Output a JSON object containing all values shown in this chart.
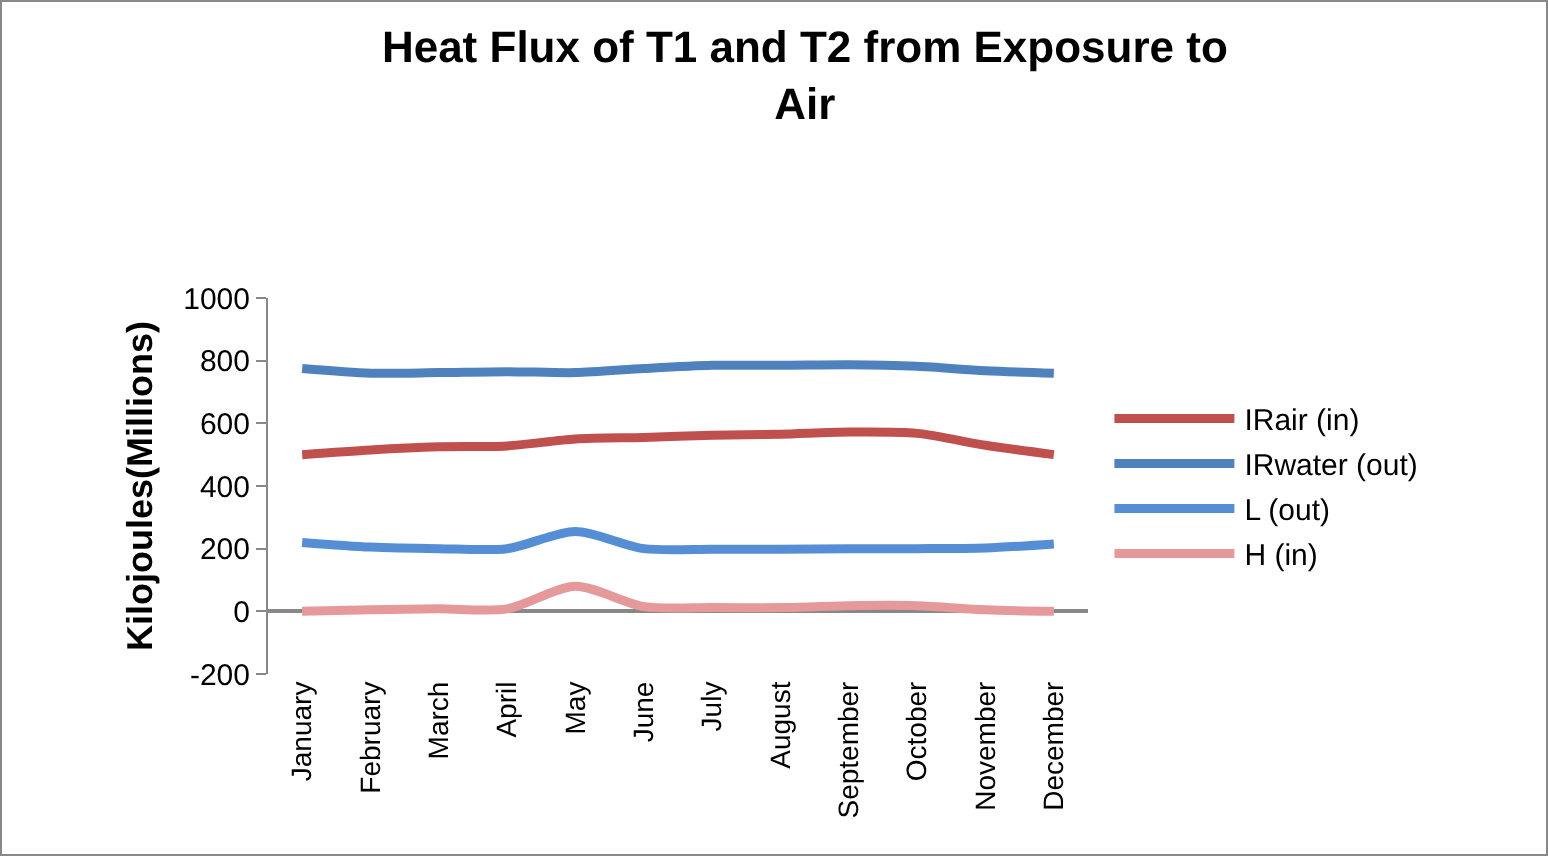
{
  "chart_data": {
    "type": "line",
    "title": "Heat Flux of T1 and T2 from Exposure to Air",
    "ylabel": "Kilojoules(Millions)",
    "categories": [
      "January",
      "February",
      "March",
      "April",
      "May",
      "June",
      "July",
      "August",
      "September",
      "October",
      "November",
      "December"
    ],
    "series": [
      {
        "name": "IRair (in)",
        "color": "#c0504d",
        "values": [
          500,
          515,
          525,
          528,
          550,
          555,
          562,
          565,
          572,
          568,
          530,
          500
        ]
      },
      {
        "name": "IRwater (out)",
        "color": "#4f81bd",
        "values": [
          775,
          760,
          762,
          765,
          762,
          775,
          785,
          785,
          787,
          782,
          768,
          760
        ]
      },
      {
        "name": "L (out)",
        "color": "#558ed5",
        "values": [
          220,
          205,
          200,
          200,
          255,
          200,
          198,
          198,
          200,
          200,
          202,
          215
        ]
      },
      {
        "name": "H (in)",
        "color": "#e6999a",
        "values": [
          0,
          5,
          8,
          8,
          80,
          15,
          12,
          12,
          18,
          18,
          5,
          0
        ]
      }
    ],
    "ylim": [
      -200,
      1000
    ],
    "yticks": [
      -200,
      0,
      200,
      400,
      600,
      800,
      1000
    ],
    "grid": false,
    "legend": "right",
    "marker": "none",
    "line_style": "solid"
  }
}
